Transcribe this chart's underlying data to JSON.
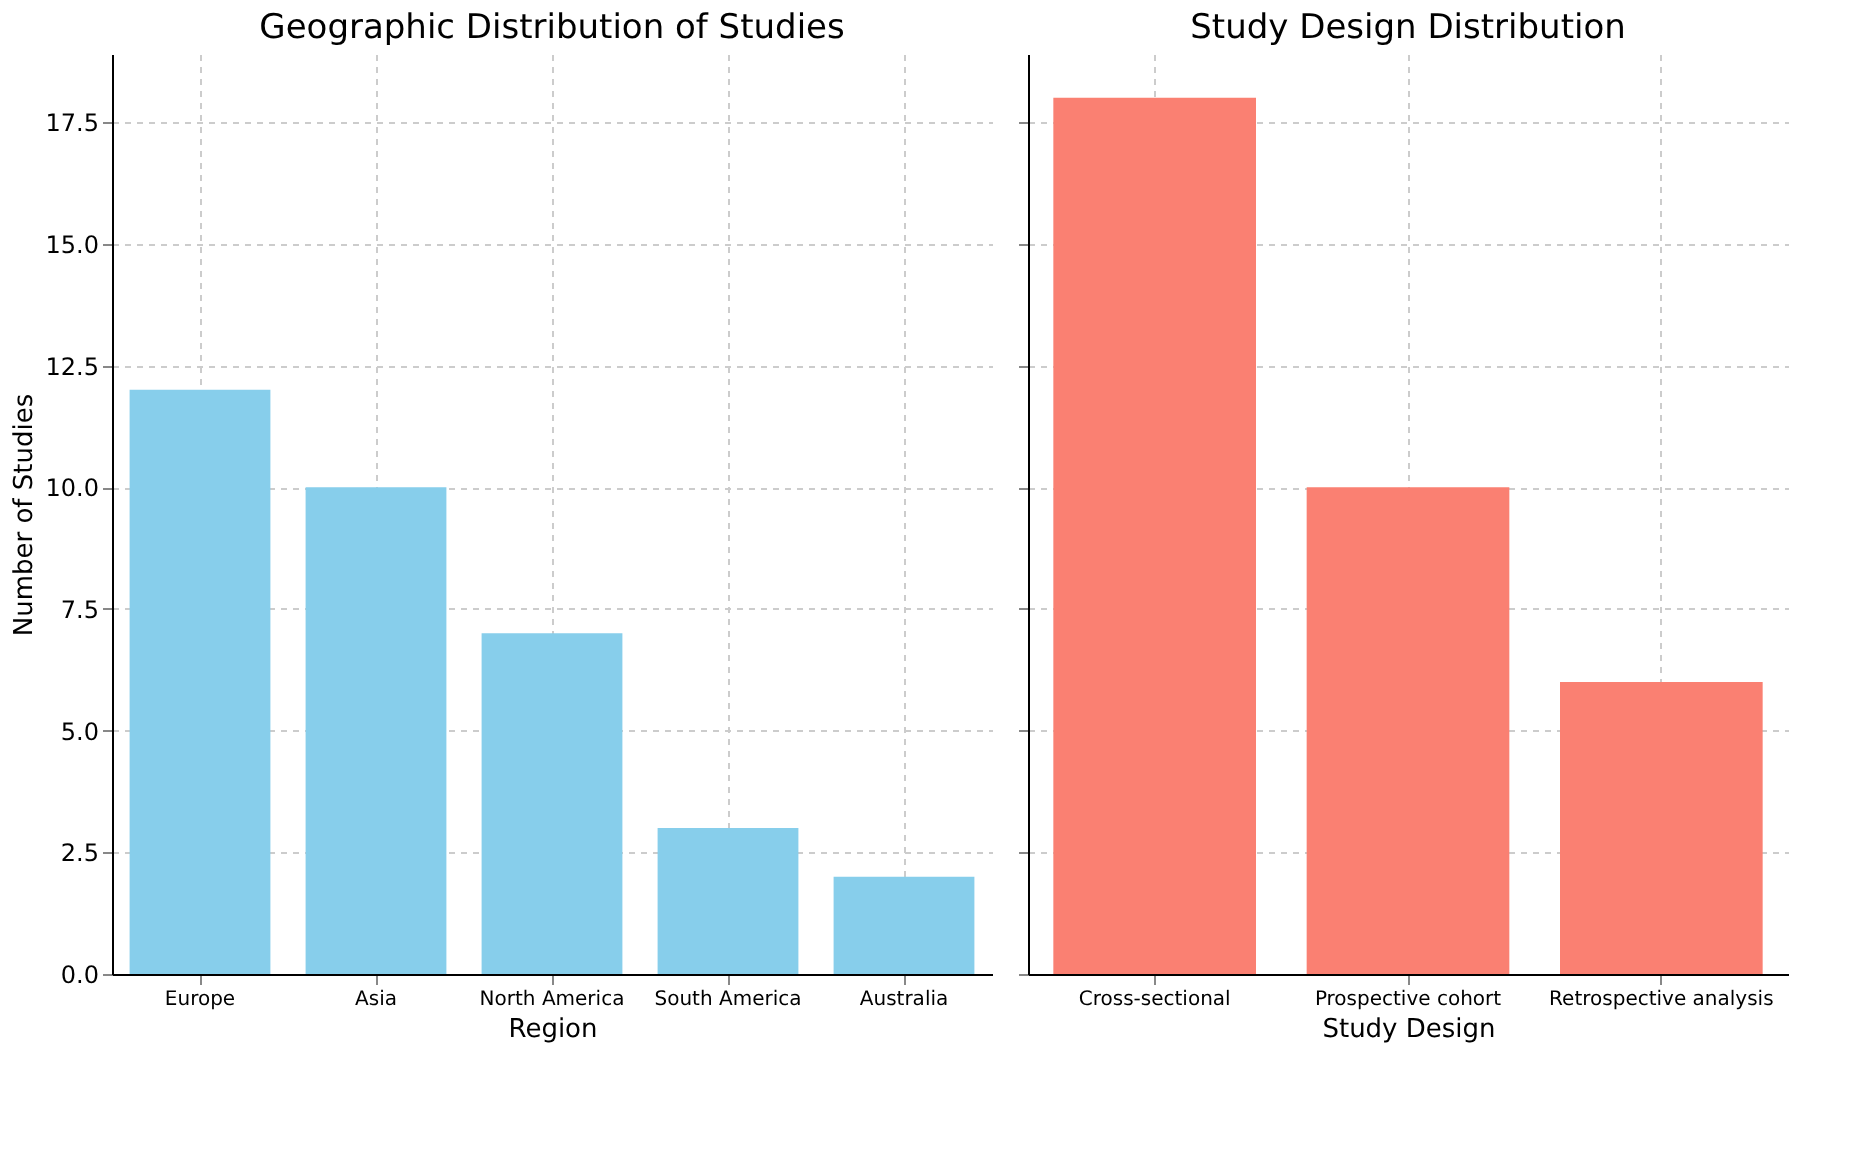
{
  "chart_data": [
    {
      "type": "bar",
      "title": "Geographic Distribution of Studies",
      "xlabel": "Region",
      "ylabel": "Number of Studies",
      "categories": [
        "Europe",
        "Asia",
        "North America",
        "South America",
        "Australia"
      ],
      "values": [
        12,
        10,
        7,
        3,
        2
      ],
      "color": "#87ceeb",
      "ylim": [
        0,
        18.9
      ],
      "yticks": [
        {
          "value": 0,
          "label": "0.0"
        },
        2.5,
        {
          "value": 5,
          "label": "5.0"
        },
        7.5,
        {
          "value": 10,
          "label": "10.0"
        },
        12.5,
        {
          "value": 15,
          "label": "15.0"
        },
        17.5
      ],
      "grid": true
    },
    {
      "type": "bar",
      "title": "Study Design Distribution",
      "xlabel": "Study Design",
      "categories": [
        "Cross-sectional",
        "Prospective cohort",
        "Retrospective analysis"
      ],
      "values": [
        18,
        10,
        6
      ],
      "color": "#fa8072",
      "ylim": [
        0,
        18.9
      ],
      "yticks": [
        0,
        2.5,
        5,
        7.5,
        10,
        12.5,
        15,
        17.5
      ],
      "grid": true,
      "tick_labels": "x"
    }
  ]
}
